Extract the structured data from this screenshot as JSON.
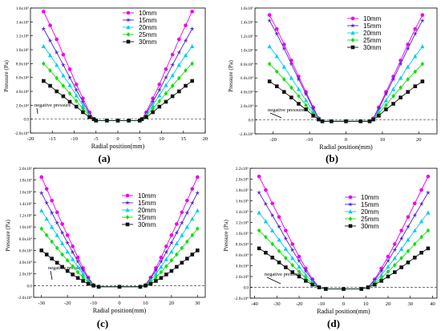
{
  "figure": {
    "colors": {
      "10mm": "#ee00ee",
      "15mm": "#5522cc",
      "20mm": "#00ccee",
      "25mm": "#11dd11",
      "30mm": "#111111",
      "baseline": "#444444"
    }
  },
  "chart_data": [
    {
      "id": "a",
      "type": "line",
      "panel_label": "(a)",
      "xlabel": "Radial position(mm)",
      "ylabel": "Pressure (Pa)",
      "xlim": [
        -20,
        20
      ],
      "ylim": [
        -20000,
        160000
      ],
      "x_ticks": [
        "-20",
        "-15",
        "-10",
        "-5",
        "0",
        "5",
        "10",
        "15",
        "20"
      ],
      "y_ticks": [
        "-2.0x10⁴",
        "0.0",
        "2.0x10⁴",
        "4.0x10⁴",
        "6.0x10⁴",
        "8.0x10⁴",
        "1.0x10⁵",
        "1.2x10⁵",
        "1.4x10⁵",
        "1.6x10⁵"
      ],
      "annotation": "negative pressure",
      "legend_position": "top-center",
      "x": [
        -17,
        -15.5,
        -14,
        -12.5,
        -11,
        -9.5,
        -8,
        -6.5,
        -5.5,
        -5,
        -2.5,
        0,
        2.5,
        5,
        5.5,
        6.5,
        8,
        9.5,
        11,
        12.5,
        14,
        15.5,
        17
      ],
      "series": [
        {
          "name": "10mm",
          "marker": "circle",
          "values": [
            155000,
            135000,
            115000,
            93000,
            72000,
            50000,
            30000,
            10000,
            0,
            -2000,
            -2000,
            -2000,
            -2000,
            -2000,
            0,
            10000,
            30000,
            50000,
            72000,
            93000,
            115000,
            135000,
            155000
          ]
        },
        {
          "name": "15mm",
          "marker": "star",
          "values": [
            130000,
            113000,
            96000,
            78000,
            60000,
            42000,
            25000,
            8000,
            0,
            -2000,
            -2000,
            -2000,
            -2000,
            -2000,
            0,
            8000,
            25000,
            42000,
            60000,
            78000,
            96000,
            113000,
            130000
          ]
        },
        {
          "name": "20mm",
          "marker": "triangle",
          "values": [
            105000,
            92000,
            78000,
            63000,
            49000,
            34000,
            20000,
            6000,
            0,
            -2000,
            -2000,
            -2000,
            -2000,
            -2000,
            0,
            6000,
            20000,
            34000,
            49000,
            63000,
            78000,
            92000,
            105000
          ]
        },
        {
          "name": "25mm",
          "marker": "diamond",
          "values": [
            80000,
            70000,
            59000,
            48000,
            37000,
            26000,
            15000,
            5000,
            0,
            -2000,
            -2000,
            -2000,
            -2000,
            -2000,
            0,
            5000,
            15000,
            26000,
            37000,
            48000,
            59000,
            70000,
            80000
          ]
        },
        {
          "name": "30mm",
          "marker": "square",
          "values": [
            55000,
            48000,
            40000,
            33000,
            25000,
            18000,
            10000,
            3000,
            0,
            -2000,
            -2000,
            -2000,
            -2000,
            -2000,
            0,
            3000,
            10000,
            18000,
            25000,
            33000,
            40000,
            48000,
            55000
          ]
        }
      ]
    },
    {
      "id": "b",
      "type": "line",
      "panel_label": "(b)",
      "xlabel": "Radial position(mm)",
      "ylabel": "Pressure (Pa)",
      "xlim": [
        -25,
        25
      ],
      "ylim": [
        -20000,
        160000
      ],
      "x_ticks": [
        "-20",
        "-10",
        "0",
        "10",
        "20"
      ],
      "y_ticks": [
        "-2.0x10⁴",
        "0.0",
        "2.0x10⁴",
        "4.0x10⁴",
        "6.0x10⁴",
        "8.0x10⁴",
        "1.0x10⁵",
        "1.2x10⁵",
        "1.4x10⁵",
        "1.6x10⁵"
      ],
      "annotation": "negative pressure",
      "legend_position": "top-center",
      "x": [
        -21,
        -19,
        -17,
        -15,
        -13,
        -11,
        -9,
        -7.5,
        -6.5,
        -4,
        0,
        4,
        6.5,
        7.5,
        9,
        11,
        13,
        15,
        17,
        19,
        21
      ],
      "series": [
        {
          "name": "10mm",
          "marker": "circle",
          "values": [
            150000,
            130000,
            108000,
            85000,
            62000,
            40000,
            18000,
            2000,
            -2000,
            -2000,
            -2000,
            -2000,
            -2000,
            2000,
            18000,
            40000,
            62000,
            85000,
            108000,
            130000,
            150000
          ]
        },
        {
          "name": "15mm",
          "marker": "star",
          "values": [
            142000,
            123000,
            102000,
            80000,
            58000,
            37000,
            16000,
            2000,
            -2000,
            -2000,
            -2000,
            -2000,
            -2000,
            2000,
            16000,
            37000,
            58000,
            80000,
            102000,
            123000,
            142000
          ]
        },
        {
          "name": "20mm",
          "marker": "triangle",
          "values": [
            105000,
            91000,
            76000,
            60000,
            44000,
            28000,
            12000,
            1000,
            -2000,
            -2000,
            -2000,
            -2000,
            -2000,
            1000,
            12000,
            28000,
            44000,
            60000,
            76000,
            91000,
            105000
          ]
        },
        {
          "name": "25mm",
          "marker": "diamond",
          "values": [
            80000,
            69000,
            58000,
            46000,
            34000,
            21000,
            9000,
            1000,
            -2000,
            -2000,
            -2000,
            -2000,
            -2000,
            1000,
            9000,
            21000,
            34000,
            46000,
            58000,
            69000,
            80000
          ]
        },
        {
          "name": "30mm",
          "marker": "square",
          "values": [
            55000,
            48000,
            40000,
            32000,
            23000,
            15000,
            6000,
            500,
            -2000,
            -2000,
            -2000,
            -2000,
            -2000,
            500,
            6000,
            15000,
            23000,
            32000,
            40000,
            48000,
            55000
          ]
        }
      ]
    },
    {
      "id": "c",
      "type": "line",
      "panel_label": "(c)",
      "xlabel": "Radial position(mm)",
      "ylabel": "Pressure (Pa)",
      "xlim": [
        -33,
        33
      ],
      "ylim": [
        -20000,
        200000
      ],
      "x_ticks": [
        "-30",
        "-20",
        "-10",
        "0",
        "10",
        "20",
        "30"
      ],
      "y_ticks": [
        "-2.0x10⁴",
        "0.0",
        "2.0x10⁴",
        "4.0x10⁴",
        "6.0x10⁴",
        "8.0x10⁴",
        "1.0x10⁵",
        "1.2x10⁵",
        "1.4x10⁵",
        "1.6x10⁵",
        "1.8x10⁵",
        "2.0x10⁵"
      ],
      "annotation": "negative pressure",
      "legend_position": "top-center",
      "x": [
        -30,
        -28,
        -26,
        -24,
        -22,
        -20,
        -18,
        -16,
        -14,
        -12,
        -10,
        -8,
        0,
        8,
        10,
        12,
        14,
        16,
        18,
        20,
        22,
        24,
        26,
        28,
        30
      ],
      "series": [
        {
          "name": "10mm",
          "marker": "circle",
          "values": [
            185000,
            165000,
            145000,
            125000,
            105000,
            86000,
            67000,
            48000,
            30000,
            14000,
            1000,
            -2000,
            -2000,
            -2000,
            1000,
            14000,
            30000,
            48000,
            67000,
            86000,
            105000,
            125000,
            145000,
            165000,
            185000
          ]
        },
        {
          "name": "15mm",
          "marker": "star",
          "values": [
            158000,
            141000,
            124000,
            107000,
            90000,
            73000,
            57000,
            41000,
            26000,
            12000,
            1000,
            -2000,
            -2000,
            -2000,
            1000,
            12000,
            26000,
            41000,
            57000,
            73000,
            90000,
            107000,
            124000,
            141000,
            158000
          ]
        },
        {
          "name": "20mm",
          "marker": "triangle",
          "values": [
            128000,
            114000,
            100000,
            86000,
            72000,
            58000,
            45000,
            32000,
            20000,
            9000,
            500,
            -2000,
            -2000,
            -2000,
            500,
            9000,
            20000,
            32000,
            45000,
            58000,
            72000,
            86000,
            100000,
            114000,
            128000
          ]
        },
        {
          "name": "25mm",
          "marker": "diamond",
          "values": [
            97000,
            86000,
            75000,
            64000,
            53000,
            43000,
            33000,
            23000,
            14000,
            6000,
            0,
            -2000,
            -2000,
            -2000,
            0,
            6000,
            14000,
            23000,
            33000,
            43000,
            53000,
            64000,
            75000,
            86000,
            97000
          ]
        },
        {
          "name": "30mm",
          "marker": "square",
          "values": [
            60000,
            53000,
            46000,
            39000,
            32000,
            25000,
            19000,
            13000,
            8000,
            3000,
            0,
            -2000,
            -2000,
            -2000,
            0,
            3000,
            8000,
            13000,
            19000,
            25000,
            32000,
            39000,
            46000,
            53000,
            60000
          ]
        }
      ]
    },
    {
      "id": "d",
      "type": "line",
      "panel_label": "(d)",
      "xlabel": "Radial position(mm)",
      "ylabel": "Pressure (Pa)",
      "xlim": [
        -42,
        42
      ],
      "ylim": [
        -20000,
        220000
      ],
      "x_ticks": [
        "-40",
        "-30",
        "-20",
        "-10",
        "0",
        "10",
        "20",
        "30",
        "40"
      ],
      "y_ticks": [
        "-2.0x10⁴",
        "0.0",
        "2.0x10⁴",
        "4.0x10⁴",
        "6.0x10⁴",
        "8.0x10⁴",
        "1.0x10⁵",
        "1.2x10⁵",
        "1.4x10⁵",
        "1.6x10⁵",
        "1.8x10⁵",
        "2.0x10⁵",
        "2.2x10⁵"
      ],
      "annotation": "negative pressure",
      "legend_position": "top-center",
      "x": [
        -38,
        -35,
        -32,
        -29,
        -26,
        -23,
        -20,
        -17,
        -14,
        -11,
        -8,
        0,
        8,
        11,
        14,
        17,
        20,
        23,
        26,
        29,
        32,
        35,
        38
      ],
      "series": [
        {
          "name": "10mm",
          "marker": "circle",
          "values": [
            205000,
            180000,
            155000,
            130000,
            105000,
            80000,
            57000,
            35000,
            15000,
            0,
            -3000,
            -3000,
            -3000,
            0,
            15000,
            35000,
            57000,
            80000,
            105000,
            130000,
            155000,
            180000,
            205000
          ]
        },
        {
          "name": "15mm",
          "marker": "star",
          "values": [
            175000,
            154000,
            133000,
            112000,
            90000,
            69000,
            49000,
            30000,
            13000,
            0,
            -3000,
            -3000,
            -3000,
            0,
            13000,
            30000,
            49000,
            69000,
            90000,
            112000,
            133000,
            154000,
            175000
          ]
        },
        {
          "name": "20mm",
          "marker": "triangle",
          "values": [
            138000,
            122000,
            105000,
            88000,
            71000,
            54000,
            38000,
            23000,
            10000,
            0,
            -3000,
            -3000,
            -3000,
            0,
            10000,
            23000,
            38000,
            54000,
            71000,
            88000,
            105000,
            122000,
            138000
          ]
        },
        {
          "name": "25mm",
          "marker": "diamond",
          "values": [
            105000,
            93000,
            80000,
            67000,
            54000,
            41000,
            29000,
            17000,
            7000,
            0,
            -3000,
            -3000,
            -3000,
            0,
            7000,
            17000,
            29000,
            41000,
            54000,
            67000,
            80000,
            93000,
            105000
          ]
        },
        {
          "name": "30mm",
          "marker": "square",
          "values": [
            72000,
            64000,
            55000,
            46000,
            37000,
            28000,
            20000,
            12000,
            5000,
            0,
            -3000,
            -3000,
            -3000,
            0,
            5000,
            12000,
            20000,
            28000,
            37000,
            46000,
            55000,
            64000,
            72000
          ]
        }
      ]
    }
  ]
}
